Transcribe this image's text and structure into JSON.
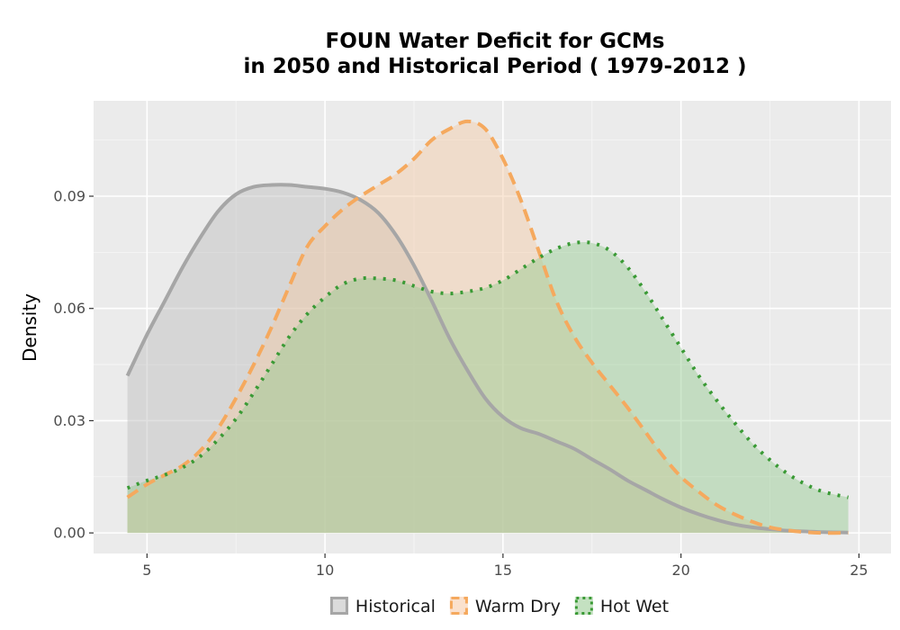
{
  "chart_data": {
    "type": "area",
    "title_line1": "FOUN  Water Deficit for GCMs",
    "title_line2": "in 2050 and Historical Period ( 1979-2012 )",
    "xlabel": "",
    "ylabel": "Density",
    "xlim": [
      3.5,
      25.9
    ],
    "ylim": [
      -0.0055,
      0.1155
    ],
    "x_ticks": [
      5,
      10,
      15,
      20,
      25
    ],
    "y_ticks": [
      0.0,
      0.03,
      0.06,
      0.09
    ],
    "x_tick_labels": [
      "5",
      "10",
      "15",
      "20",
      "25"
    ],
    "y_tick_labels": [
      "0.00",
      "0.03",
      "0.06",
      "0.09"
    ],
    "grid": true,
    "legend_position": "bottom",
    "series": [
      {
        "name": "Historical",
        "line_color": "#a6a6a6",
        "fill_color": "#bdbdbd",
        "dash": "solid",
        "x": [
          4.45,
          5.0,
          5.5,
          6.0,
          6.5,
          7.0,
          7.5,
          8.0,
          8.5,
          9.0,
          9.5,
          10.0,
          10.5,
          11.0,
          11.5,
          12.0,
          12.5,
          13.0,
          13.5,
          14.0,
          14.5,
          15.0,
          15.5,
          16.0,
          16.5,
          17.0,
          17.5,
          18.0,
          18.5,
          19.0,
          19.5,
          20.0,
          20.5,
          21.0,
          21.5,
          22.0,
          22.5,
          23.0,
          23.5,
          24.0,
          24.7
        ],
        "y": [
          0.042,
          0.053,
          0.062,
          0.071,
          0.079,
          0.086,
          0.0905,
          0.0925,
          0.093,
          0.093,
          0.0925,
          0.092,
          0.091,
          0.089,
          0.0855,
          0.0795,
          0.0715,
          0.062,
          0.052,
          0.0435,
          0.036,
          0.031,
          0.028,
          0.0265,
          0.0245,
          0.0225,
          0.0197,
          0.017,
          0.014,
          0.0115,
          0.009,
          0.0068,
          0.005,
          0.0035,
          0.0023,
          0.0015,
          0.001,
          0.0006,
          0.0004,
          0.0002,
          0.0001
        ]
      },
      {
        "name": "Warm Dry",
        "line_color": "#f5a95e",
        "fill_color": "#f5c9a5",
        "dash": "dashed",
        "x": [
          4.45,
          5.0,
          5.5,
          6.0,
          6.5,
          7.0,
          7.5,
          8.0,
          8.5,
          9.0,
          9.5,
          10.0,
          10.5,
          11.0,
          11.5,
          12.0,
          12.5,
          13.0,
          13.5,
          14.0,
          14.5,
          15.0,
          15.5,
          16.0,
          16.5,
          17.0,
          17.5,
          18.0,
          18.5,
          19.0,
          19.5,
          20.0,
          20.5,
          21.0,
          21.5,
          22.0,
          22.5,
          23.0,
          23.5,
          24.0,
          24.7
        ],
        "y": [
          0.0095,
          0.013,
          0.0155,
          0.018,
          0.022,
          0.028,
          0.036,
          0.045,
          0.055,
          0.066,
          0.0765,
          0.082,
          0.0865,
          0.09,
          0.093,
          0.096,
          0.1,
          0.105,
          0.108,
          0.11,
          0.108,
          0.1,
          0.089,
          0.0755,
          0.062,
          0.0525,
          0.0455,
          0.0395,
          0.0335,
          0.027,
          0.0205,
          0.015,
          0.011,
          0.0075,
          0.005,
          0.003,
          0.0015,
          0.0007,
          0.0002,
          0.0,
          0.0
        ]
      },
      {
        "name": "Hot Wet",
        "line_color": "#3a9a35",
        "fill_color": "#93c98e",
        "dash": "dotted",
        "x": [
          4.45,
          5.0,
          5.5,
          6.0,
          6.5,
          7.0,
          7.5,
          8.0,
          8.5,
          9.0,
          9.5,
          10.0,
          10.5,
          11.0,
          11.5,
          12.0,
          12.5,
          13.0,
          13.5,
          14.0,
          14.5,
          15.0,
          15.5,
          16.0,
          16.5,
          17.0,
          17.5,
          18.0,
          18.5,
          19.0,
          19.5,
          20.0,
          20.5,
          21.0,
          21.5,
          22.0,
          22.5,
          23.0,
          23.5,
          24.0,
          24.7
        ],
        "y": [
          0.012,
          0.014,
          0.0155,
          0.0175,
          0.0205,
          0.025,
          0.0305,
          0.0375,
          0.045,
          0.0525,
          0.0585,
          0.063,
          0.0665,
          0.068,
          0.068,
          0.0675,
          0.066,
          0.0645,
          0.064,
          0.0645,
          0.0655,
          0.0675,
          0.0705,
          0.0735,
          0.076,
          0.0775,
          0.0775,
          0.0755,
          0.071,
          0.0645,
          0.057,
          0.0495,
          0.042,
          0.0355,
          0.0295,
          0.024,
          0.0195,
          0.0158,
          0.013,
          0.011,
          0.0095
        ]
      }
    ]
  }
}
